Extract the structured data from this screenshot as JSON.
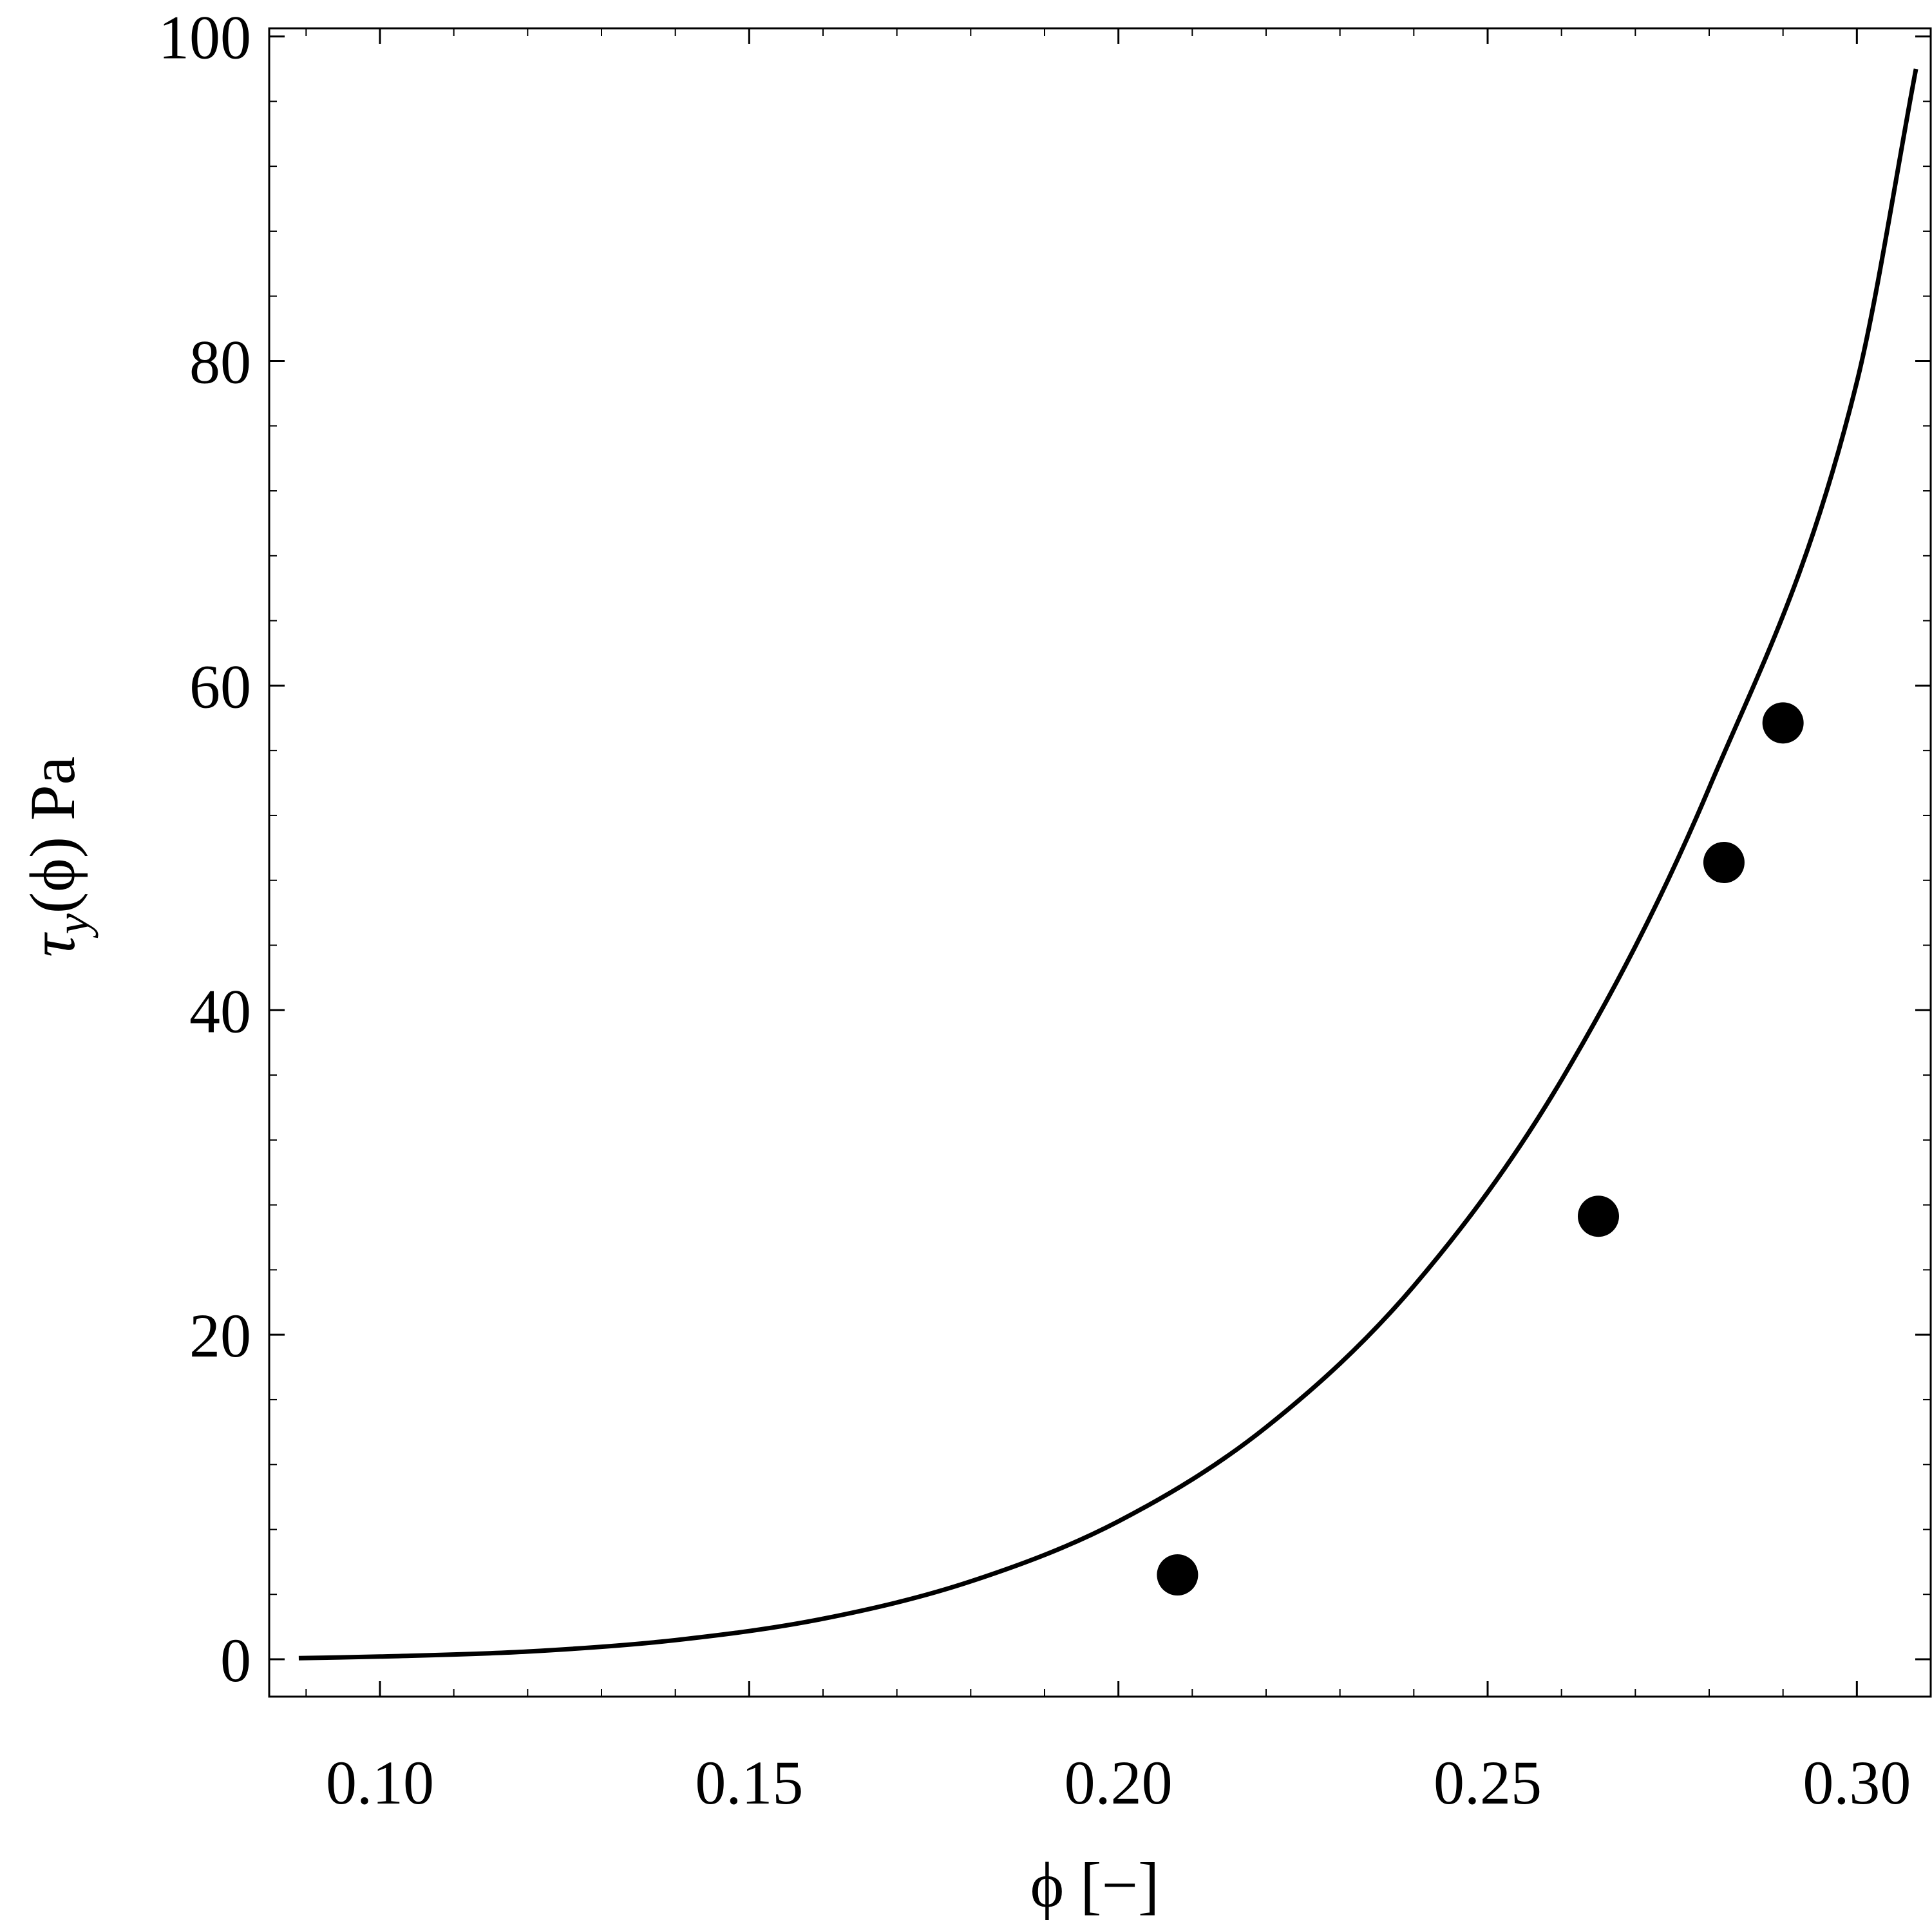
{
  "chart_data": {
    "type": "scatter",
    "title": "",
    "xlabel": "ϕ [−]",
    "ylabel_parts": {
      "tau": "τ",
      "sub": "y",
      "arg": "(ϕ) Pa"
    },
    "xlim": [
      0.085,
      0.31
    ],
    "ylim": [
      -2.3,
      100.5
    ],
    "x_ticks": [
      {
        "value": 0.1,
        "label": "0.10"
      },
      {
        "value": 0.15,
        "label": "0.15"
      },
      {
        "value": 0.2,
        "label": "0.20"
      },
      {
        "value": 0.25,
        "label": "0.25"
      },
      {
        "value": 0.3,
        "label": "0.30"
      }
    ],
    "y_ticks": [
      {
        "value": 0,
        "label": "0"
      },
      {
        "value": 20,
        "label": "20"
      },
      {
        "value": 40,
        "label": "40"
      },
      {
        "value": 60,
        "label": "60"
      },
      {
        "value": 80,
        "label": "80"
      },
      {
        "value": 100,
        "label": "100"
      }
    ],
    "x_minor_step": 0.01,
    "y_minor_step": 4,
    "grid": false,
    "series": [
      {
        "kind": "line",
        "x": [
          0.089,
          0.1,
          0.12,
          0.14,
          0.16,
          0.18,
          0.2,
          0.22,
          0.24,
          0.26,
          0.28,
          0.3,
          0.308
        ],
        "y": [
          0.07,
          0.17,
          0.48,
          1.18,
          2.5,
          4.8,
          8.5,
          14.3,
          23.0,
          35.7,
          53.7,
          78.7,
          98.0
        ],
        "color": "#000000"
      },
      {
        "kind": "scatter",
        "x": [
          0.208,
          0.265,
          0.282,
          0.29
        ],
        "y": [
          5.2,
          27.3,
          49.1,
          57.7
        ],
        "color": "#000000"
      }
    ]
  }
}
